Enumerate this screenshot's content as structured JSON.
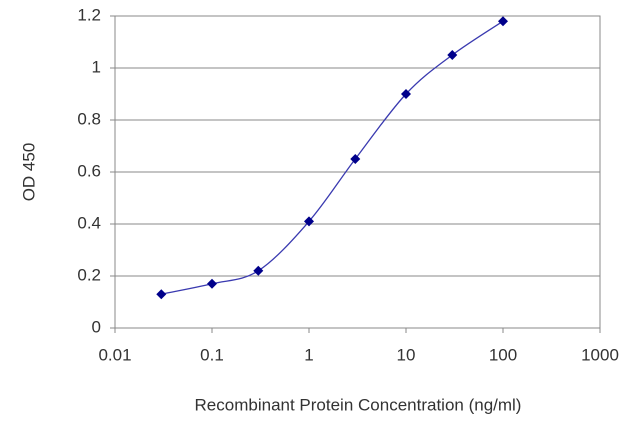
{
  "chart_data": {
    "type": "line",
    "x_label": "Recombinant Protein Concentration (ng/ml)",
    "y_label": "OD 450",
    "x": [
      0.03,
      0.1,
      0.3,
      1,
      3,
      10,
      30,
      100
    ],
    "values": [
      0.13,
      0.17,
      0.22,
      0.41,
      0.65,
      0.9,
      1.05,
      1.18
    ],
    "color": "#3a3ab0",
    "marker_color": "#00008b",
    "xscale": "log",
    "xlim": [
      0.01,
      1000
    ],
    "xticks": [
      0.01,
      0.1,
      1,
      10,
      100,
      1000
    ],
    "ylim": [
      0,
      1.2
    ],
    "yticks": [
      0,
      0.2,
      0.4,
      0.6,
      0.8,
      1,
      1.2
    ],
    "grid": true
  }
}
